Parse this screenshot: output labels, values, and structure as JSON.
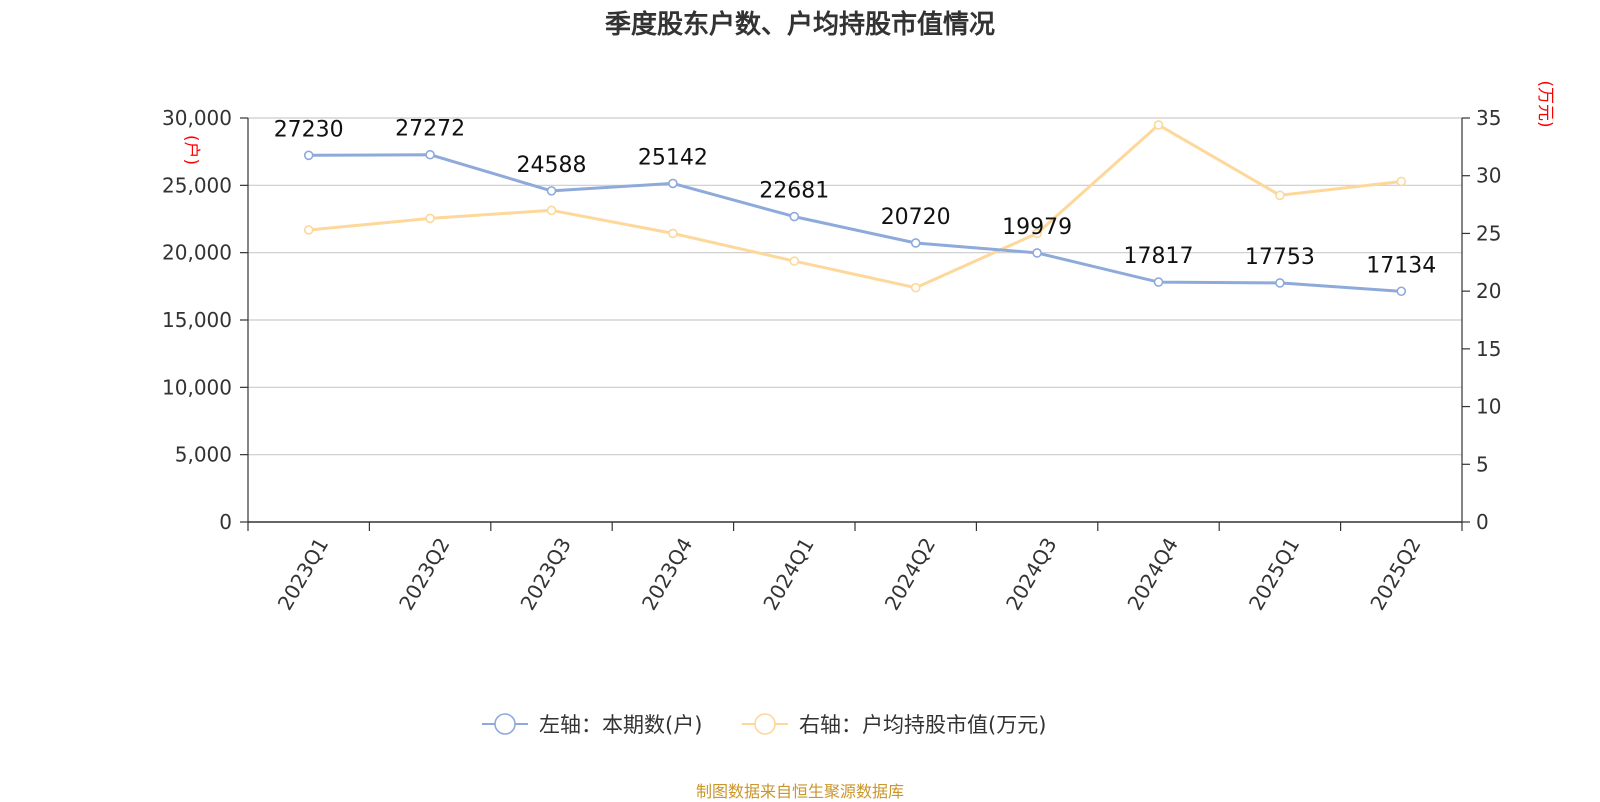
{
  "title": "季度股东户数、户均持股市值情况",
  "source": "制图数据来自恒生聚源数据库",
  "left_axis_unit": "(户)",
  "right_axis_unit": "(万元)",
  "colors": {
    "series_left": "#8eaadb",
    "series_right": "#fdd89a",
    "unit_label": "#ff0000",
    "source": "#c9962b",
    "grid": "#cccccc",
    "axis": "#333333"
  },
  "chart_data": {
    "type": "line",
    "title": "季度股东户数、户均持股市值情况",
    "categories": [
      "2023Q1",
      "2023Q2",
      "2023Q3",
      "2023Q4",
      "2024Q1",
      "2024Q2",
      "2024Q3",
      "2024Q4",
      "2025Q1",
      "2025Q2"
    ],
    "y_left": {
      "label": "(户)",
      "range": [
        0,
        30000
      ],
      "ticks": [
        0,
        5000,
        10000,
        15000,
        20000,
        25000,
        30000
      ],
      "tick_labels": [
        "0",
        "5,000",
        "10,000",
        "15,000",
        "20,000",
        "25,000",
        "30,000"
      ]
    },
    "y_right": {
      "label": "(万元)",
      "range": [
        0,
        35
      ],
      "ticks": [
        0,
        5,
        10,
        15,
        20,
        25,
        30,
        35
      ],
      "tick_labels": [
        "0",
        "5",
        "10",
        "15",
        "20",
        "25",
        "30",
        "35"
      ]
    },
    "grid": true,
    "legend_position": "bottom",
    "series": [
      {
        "name": "左轴：本期数(户)",
        "axis": "left",
        "values": [
          27230,
          27272,
          24588,
          25142,
          22681,
          20720,
          19979,
          17817,
          17753,
          17134
        ],
        "data_labels": [
          "27230",
          "27272",
          "24588",
          "25142",
          "22681",
          "20720",
          "19979",
          "17817",
          "17753",
          "17134"
        ]
      },
      {
        "name": "右轴：户均持股市值(万元)",
        "axis": "right",
        "values": [
          25.3,
          26.3,
          27.0,
          25.0,
          22.6,
          20.3,
          25.0,
          34.4,
          28.3,
          29.5
        ]
      }
    ]
  }
}
